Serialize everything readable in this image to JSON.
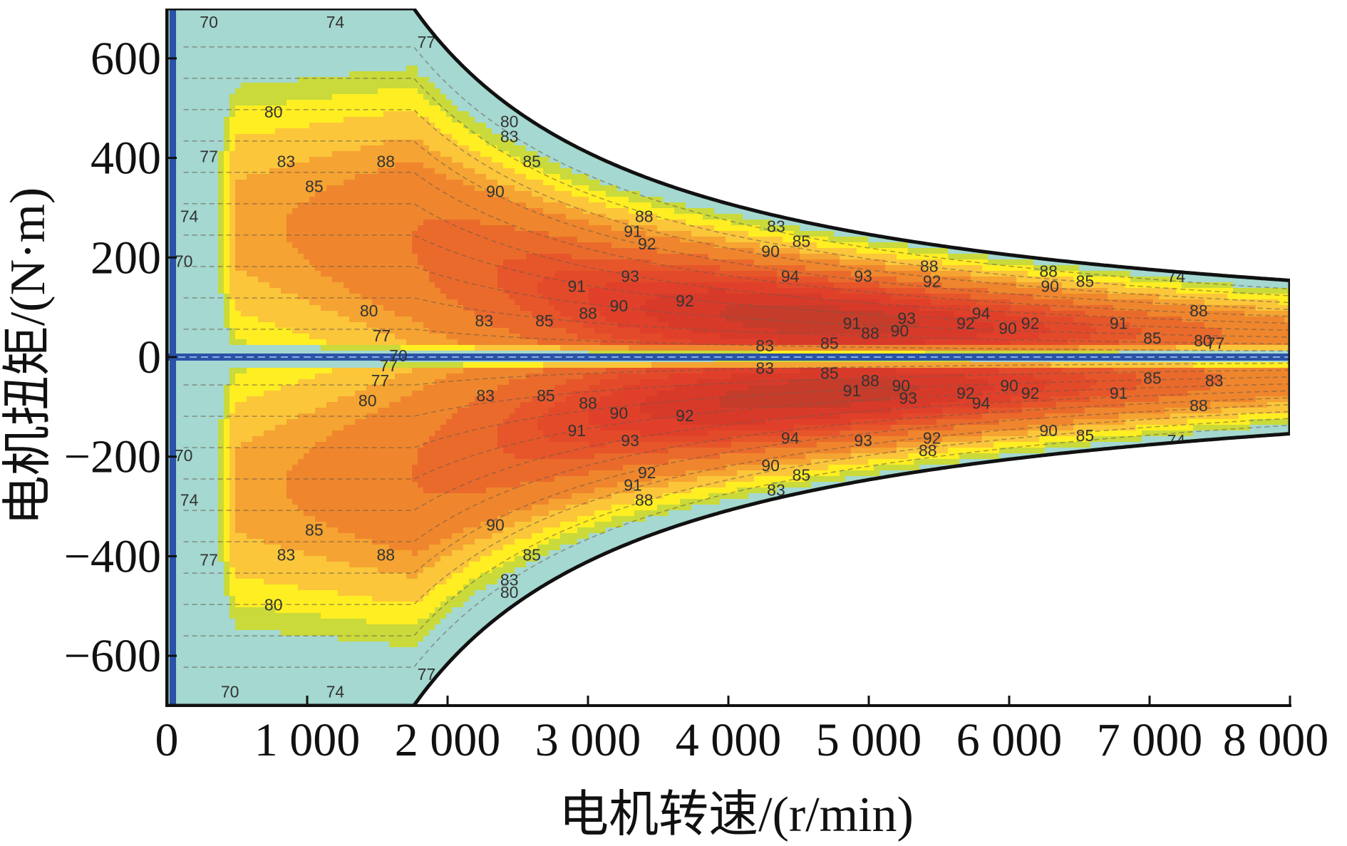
{
  "chart_data": {
    "type": "contour",
    "xlabel": "电机转速/(r/min)",
    "ylabel": "电机扭矩/(N·m)",
    "xlim": [
      0,
      8000
    ],
    "ylim": [
      -700,
      700
    ],
    "x_ticks": [
      {
        "value": 0,
        "label": "0"
      },
      {
        "value": 1000,
        "label": "1 000"
      },
      {
        "value": 2000,
        "label": "2 000"
      },
      {
        "value": 3000,
        "label": "3 000"
      },
      {
        "value": 4000,
        "label": "4 000"
      },
      {
        "value": 5000,
        "label": "5 000"
      },
      {
        "value": 6000,
        "label": "6 000"
      },
      {
        "value": 7000,
        "label": "7 000"
      },
      {
        "value": 8000,
        "label": "8 000"
      }
    ],
    "y_ticks": [
      {
        "value": 600,
        "label": "600"
      },
      {
        "value": 400,
        "label": "400"
      },
      {
        "value": 200,
        "label": "200"
      },
      {
        "value": 0,
        "label": "0"
      },
      {
        "value": -200,
        "label": "−200"
      },
      {
        "value": -400,
        "label": "−400"
      },
      {
        "value": -600,
        "label": "−600"
      }
    ],
    "efficiency_levels": [
      70,
      74,
      77,
      80,
      83,
      85,
      88,
      90,
      91,
      92,
      93,
      94
    ],
    "level_colors": [
      "#a4d8d0",
      "#c9da3a",
      "#ffee22",
      "#fbc63a",
      "#f5a332",
      "#ef862d",
      "#ea6a2c",
      "#e6562a",
      "#e34a2a",
      "#e0402a",
      "#d83a2a",
      "#c63c2a"
    ],
    "torque_envelope": {
      "base_speed": 1760,
      "max_torque": 700,
      "points": [
        {
          "speed": 1760,
          "torque": 700
        },
        {
          "speed": 2000,
          "torque": 616
        },
        {
          "speed": 3000,
          "torque": 411
        },
        {
          "speed": 4000,
          "torque": 308
        },
        {
          "speed": 5000,
          "torque": 246
        },
        {
          "speed": 6000,
          "torque": 205
        },
        {
          "speed": 7000,
          "torque": 176
        },
        {
          "speed": 8000,
          "torque": 154
        }
      ]
    },
    "contour_labels": [
      {
        "text": "70",
        "speed": 300,
        "torque": 670
      },
      {
        "text": "74",
        "speed": 1200,
        "torque": 670
      },
      {
        "text": "77",
        "speed": 1850,
        "torque": 630
      },
      {
        "text": "80",
        "speed": 760,
        "torque": 490
      },
      {
        "text": "77",
        "speed": 300,
        "torque": 400
      },
      {
        "text": "83",
        "speed": 850,
        "torque": 390
      },
      {
        "text": "85",
        "speed": 1050,
        "torque": 340
      },
      {
        "text": "88",
        "speed": 1560,
        "torque": 390
      },
      {
        "text": "74",
        "speed": 160,
        "torque": 280
      },
      {
        "text": "80",
        "speed": 2440,
        "torque": 470
      },
      {
        "text": "83",
        "speed": 2440,
        "torque": 440
      },
      {
        "text": "85",
        "speed": 2600,
        "torque": 390
      },
      {
        "text": "90",
        "speed": 2340,
        "torque": 330
      },
      {
        "text": "88",
        "speed": 3400,
        "torque": 280
      },
      {
        "text": "91",
        "speed": 3320,
        "torque": 250
      },
      {
        "text": "92",
        "speed": 3420,
        "torque": 225
      },
      {
        "text": "83",
        "speed": 4340,
        "torque": 260
      },
      {
        "text": "85",
        "speed": 4520,
        "torque": 230
      },
      {
        "text": "90",
        "speed": 4300,
        "torque": 210
      },
      {
        "text": "93",
        "speed": 3300,
        "torque": 160
      },
      {
        "text": "91",
        "speed": 2920,
        "torque": 140
      },
      {
        "text": "90",
        "speed": 3220,
        "torque": 100
      },
      {
        "text": "92",
        "speed": 3690,
        "torque": 110
      },
      {
        "text": "88",
        "speed": 3000,
        "torque": 85
      },
      {
        "text": "94",
        "speed": 4440,
        "torque": 160
      },
      {
        "text": "93",
        "speed": 4960,
        "torque": 160
      },
      {
        "text": "88",
        "speed": 5430,
        "torque": 180
      },
      {
        "text": "92",
        "speed": 5450,
        "torque": 150
      },
      {
        "text": "80",
        "speed": 1440,
        "torque": 90
      },
      {
        "text": "83",
        "speed": 2260,
        "torque": 70
      },
      {
        "text": "85",
        "speed": 2690,
        "torque": 70
      },
      {
        "text": "77",
        "speed": 1530,
        "torque": 40
      },
      {
        "text": "93",
        "speed": 5270,
        "torque": 75
      },
      {
        "text": "91",
        "speed": 4880,
        "torque": 65
      },
      {
        "text": "88",
        "speed": 5010,
        "torque": 45
      },
      {
        "text": "90",
        "speed": 5220,
        "torque": 50
      },
      {
        "text": "94",
        "speed": 5800,
        "torque": 85
      },
      {
        "text": "92",
        "speed": 5690,
        "torque": 65
      },
      {
        "text": "90",
        "speed": 5990,
        "torque": 55
      },
      {
        "text": "92",
        "speed": 6150,
        "torque": 65
      },
      {
        "text": "88",
        "speed": 6280,
        "torque": 170
      },
      {
        "text": "90",
        "speed": 6290,
        "torque": 140
      },
      {
        "text": "85",
        "speed": 6540,
        "torque": 150
      },
      {
        "text": "91",
        "speed": 6780,
        "torque": 65
      },
      {
        "text": "74",
        "speed": 7190,
        "torque": 160
      },
      {
        "text": "88",
        "speed": 7350,
        "torque": 90
      },
      {
        "text": "85",
        "speed": 7020,
        "torque": 35
      },
      {
        "text": "85",
        "speed": 4720,
        "torque": 25
      },
      {
        "text": "83",
        "speed": 4260,
        "torque": 20
      },
      {
        "text": "80",
        "speed": 7380,
        "torque": 30
      },
      {
        "text": "77",
        "speed": 7470,
        "torque": 25
      },
      {
        "text": "70",
        "speed": 120,
        "torque": 190
      },
      {
        "text": "80",
        "speed": 1430,
        "torque": -90
      },
      {
        "text": "77",
        "speed": 1520,
        "torque": -50
      },
      {
        "text": "83",
        "speed": 2270,
        "torque": -80
      },
      {
        "text": "85",
        "speed": 2700,
        "torque": -80
      },
      {
        "text": "88",
        "speed": 3000,
        "torque": -95
      },
      {
        "text": "90",
        "speed": 3220,
        "torque": -115
      },
      {
        "text": "92",
        "speed": 3690,
        "torque": -120
      },
      {
        "text": "91",
        "speed": 2920,
        "torque": -150
      },
      {
        "text": "93",
        "speed": 3300,
        "torque": -170
      },
      {
        "text": "94",
        "speed": 4440,
        "torque": -165
      },
      {
        "text": "93",
        "speed": 4960,
        "torque": -170
      },
      {
        "text": "92",
        "speed": 5450,
        "torque": -165
      },
      {
        "text": "88",
        "speed": 5420,
        "torque": -190
      },
      {
        "text": "91",
        "speed": 4880,
        "torque": -70
      },
      {
        "text": "88",
        "speed": 5010,
        "torque": -50
      },
      {
        "text": "90",
        "speed": 5230,
        "torque": -60
      },
      {
        "text": "93",
        "speed": 5280,
        "torque": -85
      },
      {
        "text": "92",
        "speed": 5690,
        "torque": -75
      },
      {
        "text": "94",
        "speed": 5800,
        "torque": -95
      },
      {
        "text": "90",
        "speed": 6000,
        "torque": -60
      },
      {
        "text": "92",
        "speed": 6150,
        "torque": -75
      },
      {
        "text": "91",
        "speed": 6780,
        "torque": -75
      },
      {
        "text": "90",
        "speed": 6280,
        "torque": -150
      },
      {
        "text": "85",
        "speed": 6540,
        "torque": -160
      },
      {
        "text": "74",
        "speed": 7190,
        "torque": -170
      },
      {
        "text": "88",
        "speed": 7350,
        "torque": -100
      },
      {
        "text": "85",
        "speed": 7020,
        "torque": -45
      },
      {
        "text": "85",
        "speed": 4720,
        "torque": -35
      },
      {
        "text": "83",
        "speed": 4260,
        "torque": -25
      },
      {
        "text": "83",
        "speed": 7460,
        "torque": -50
      },
      {
        "text": "90",
        "speed": 4300,
        "torque": -220
      },
      {
        "text": "85",
        "speed": 4520,
        "torque": -240
      },
      {
        "text": "83",
        "speed": 4340,
        "torque": -270
      },
      {
        "text": "92",
        "speed": 3420,
        "torque": -235
      },
      {
        "text": "91",
        "speed": 3320,
        "torque": -260
      },
      {
        "text": "88",
        "speed": 3400,
        "torque": -290
      },
      {
        "text": "90",
        "speed": 2340,
        "torque": -340
      },
      {
        "text": "85",
        "speed": 2600,
        "torque": -400
      },
      {
        "text": "83",
        "speed": 2440,
        "torque": -450
      },
      {
        "text": "80",
        "speed": 2440,
        "torque": -475
      },
      {
        "text": "88",
        "speed": 1560,
        "torque": -400
      },
      {
        "text": "85",
        "speed": 1050,
        "torque": -350
      },
      {
        "text": "83",
        "speed": 850,
        "torque": -400
      },
      {
        "text": "77",
        "speed": 300,
        "torque": -410
      },
      {
        "text": "80",
        "speed": 760,
        "torque": -500
      },
      {
        "text": "74",
        "speed": 1200,
        "torque": -675
      },
      {
        "text": "70",
        "speed": 450,
        "torque": -675
      },
      {
        "text": "77",
        "speed": 1850,
        "torque": -640
      },
      {
        "text": "74",
        "speed": 160,
        "torque": -290
      },
      {
        "text": "70",
        "speed": 120,
        "torque": -200
      },
      {
        "text": "77",
        "speed": 1580,
        "torque": -20
      },
      {
        "text": "70",
        "speed": 1650,
        "torque": 0
      }
    ]
  }
}
